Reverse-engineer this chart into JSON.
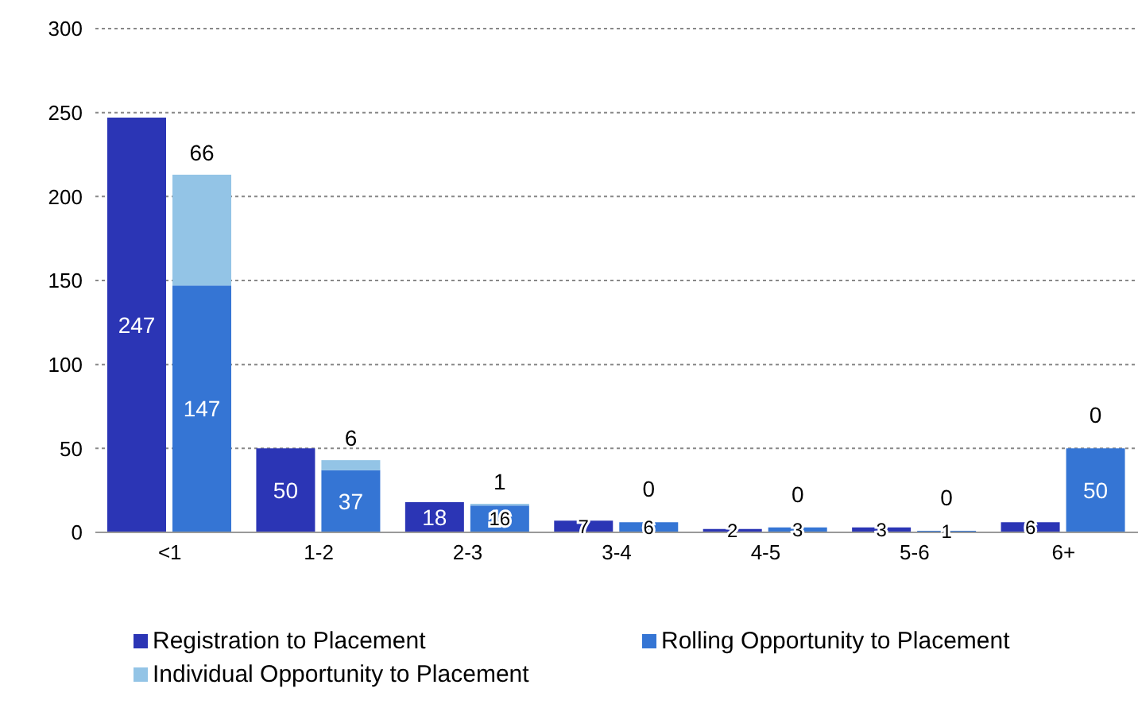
{
  "chart_data": {
    "type": "bar",
    "categories": [
      "<1",
      "1-2",
      "2-3",
      "3-4",
      "4-5",
      "5-6",
      "6+"
    ],
    "series": [
      {
        "name": "Registration to Placement",
        "color": "#2b35b5",
        "values": [
          247,
          50,
          18,
          7,
          2,
          3,
          6
        ]
      },
      {
        "name": "Rolling Opportunity to Placement",
        "color": "#3575d4",
        "values": [
          147,
          37,
          16,
          6,
          3,
          1,
          50
        ]
      },
      {
        "name": "Individual Opportunity to Placement",
        "color": "#93c4e6",
        "values": [
          66,
          6,
          1,
          null,
          null,
          null,
          null
        ],
        "base": [
          147,
          37,
          16,
          null,
          null,
          null,
          null
        ]
      }
    ],
    "annotations": [
      {
        "text": "0",
        "x": "3-4",
        "y": 6
      },
      {
        "text": "0",
        "x": "4-5",
        "y": 3
      },
      {
        "text": "0",
        "x": "5-6",
        "y": 1
      },
      {
        "text": "0",
        "x": "6+",
        "y": 50
      }
    ],
    "ylim": [
      0,
      300
    ],
    "yticks": [
      0,
      50,
      100,
      150,
      200,
      250,
      300
    ],
    "grid": "y",
    "legend": "bottom",
    "data_labels": true
  }
}
